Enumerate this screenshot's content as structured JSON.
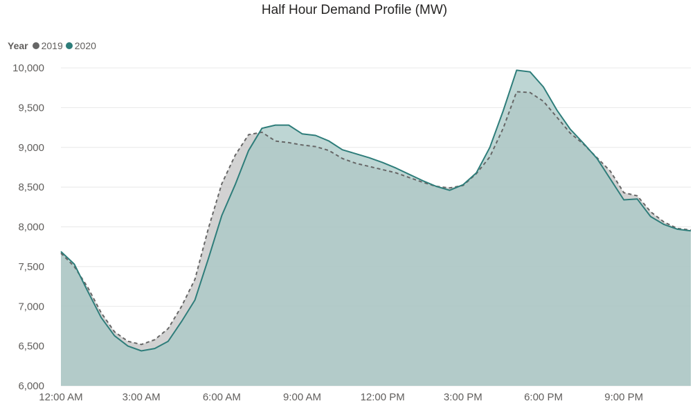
{
  "chart_data": {
    "type": "area",
    "title": "Half Hour Demand Profile (MW)",
    "legend": {
      "title": "Year",
      "placement": "top-left"
    },
    "xlabel": "",
    "ylabel": "",
    "ylim": [
      6000,
      10000
    ],
    "y_ticks": [
      "6,000",
      "6,500",
      "7,000",
      "7,500",
      "8,000",
      "8,500",
      "9,000",
      "9,500",
      "10,000"
    ],
    "y_tick_values": [
      6000,
      6500,
      7000,
      7500,
      8000,
      8500,
      9000,
      9500,
      10000
    ],
    "x_ticks": [
      "12:00 AM",
      "3:00 AM",
      "6:00 AM",
      "9:00 AM",
      "12:00 PM",
      "3:00 PM",
      "6:00 PM",
      "9:00 PM"
    ],
    "x_tick_hours": [
      0,
      3,
      6,
      9,
      12,
      15,
      18,
      21
    ],
    "x_range_hours": [
      0,
      23.5
    ],
    "grid": true,
    "series": [
      {
        "name": "2019",
        "color": "#666666",
        "fill": "#c3c3c3",
        "line_style": "dashed",
        "x": [
          0,
          0.5,
          1,
          1.5,
          2,
          2.5,
          3,
          3.5,
          4,
          4.5,
          5,
          5.5,
          6,
          6.5,
          7,
          7.5,
          8,
          8.5,
          9,
          9.5,
          10,
          10.5,
          11,
          11.5,
          12,
          12.5,
          13,
          13.5,
          14,
          14.5,
          15,
          15.5,
          16,
          16.5,
          17,
          17.5,
          18,
          18.5,
          19,
          19.5,
          20,
          20.5,
          21,
          21.5,
          22,
          22.5,
          23,
          23.5
        ],
        "values": [
          7670,
          7500,
          7240,
          6920,
          6680,
          6560,
          6520,
          6580,
          6720,
          7000,
          7340,
          7980,
          8540,
          8900,
          9160,
          9190,
          9080,
          9060,
          9030,
          9010,
          8960,
          8860,
          8800,
          8760,
          8720,
          8680,
          8620,
          8560,
          8510,
          8490,
          8520,
          8670,
          8880,
          9240,
          9700,
          9690,
          9580,
          9380,
          9180,
          9040,
          8870,
          8700,
          8430,
          8390,
          8190,
          8060,
          7980,
          7960
        ]
      },
      {
        "name": "2020",
        "color": "#2e7d7a",
        "fill": "#a8c8c5",
        "line_style": "solid",
        "x": [
          0,
          0.5,
          1,
          1.5,
          2,
          2.5,
          3,
          3.5,
          4,
          4.5,
          5,
          5.5,
          6,
          6.5,
          7,
          7.5,
          8,
          8.5,
          9,
          9.5,
          10,
          10.5,
          11,
          11.5,
          12,
          12.5,
          13,
          13.5,
          14,
          14.5,
          15,
          15.5,
          16,
          16.5,
          17,
          17.5,
          18,
          18.5,
          19,
          19.5,
          20,
          20.5,
          21,
          21.5,
          22,
          22.5,
          23,
          23.5
        ],
        "values": [
          7690,
          7530,
          7190,
          6860,
          6630,
          6500,
          6440,
          6470,
          6560,
          6810,
          7080,
          7600,
          8140,
          8530,
          8960,
          9240,
          9280,
          9280,
          9170,
          9150,
          9080,
          8970,
          8920,
          8870,
          8810,
          8740,
          8660,
          8580,
          8510,
          8460,
          8530,
          8680,
          9000,
          9460,
          9970,
          9950,
          9760,
          9470,
          9230,
          9050,
          8860,
          8600,
          8340,
          8350,
          8130,
          8030,
          7970,
          7950
        ]
      }
    ]
  }
}
